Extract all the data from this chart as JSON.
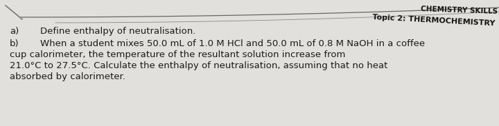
{
  "bg_color": "#d8d6d2",
  "text_area_color": "#e8e6e2",
  "header_line1": "CHEMISTRY SKILLS",
  "header_line2": "Topic 2: THERMOCHEMISTRY",
  "label_a": "a)",
  "label_b": "b)",
  "text_a": "Define enthalpy of neutralisation.",
  "text_b_line1": "When a student mixes 50.0 mL of 1.0 M HCl and 50.0 mL of 0.8 M NaOH in a coffee",
  "text_b_line2": "cup calorimeter, the temperature of the resultant solution increase from",
  "text_b_line3": "21.0°C to 27.5°C. Calculate the enthalpy of neutralisation, assuming that no heat",
  "text_b_line4": "absorbed by calorimeter.",
  "font_color": "#1a1a1a",
  "header_color": "#111111",
  "font_size_body": 9.5,
  "font_size_header": 7.5
}
